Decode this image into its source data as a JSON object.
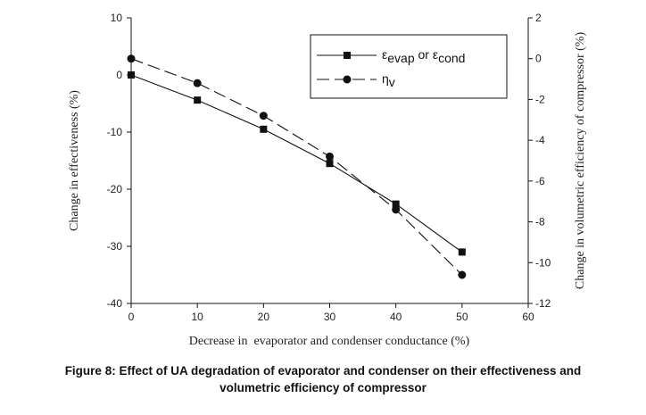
{
  "caption": {
    "line1": "Figure 8: Effect of UA degradation of evaporator and condenser on their effectiveness and",
    "line2": "volumetric efficiency of compressor"
  },
  "chart_data": {
    "type": "line",
    "xlabel": "Decrease in  evaporator and condenser conductance (%)",
    "ylabel_left": "Change in effectiveness (%)",
    "ylabel_right": "Change in volumetric efficiency of compressor (%)",
    "xlim": [
      0,
      60
    ],
    "ylim_left": [
      -40,
      10
    ],
    "ylim_right": [
      -12,
      2
    ],
    "x_ticks": [
      0,
      10,
      20,
      30,
      40,
      50,
      60
    ],
    "y_left_ticks": [
      10,
      0,
      -10,
      -20,
      -30,
      -40
    ],
    "y_right_ticks": [
      2,
      0,
      -2,
      -4,
      -6,
      -8,
      -10,
      -12
    ],
    "grid": false,
    "legend_position": "top-right",
    "series": [
      {
        "name": "εevap or εcond",
        "legend_parts": {
          "sym1": "ε",
          "sub1": "evap",
          "mid": " or ",
          "sym2": "ε",
          "sub2": "cond"
        },
        "axis": "left",
        "marker": "square",
        "line_style": "solid",
        "x": [
          0,
          10,
          20,
          30,
          40,
          50
        ],
        "y": [
          0,
          -4.4,
          -9.5,
          -15.5,
          -22.6,
          -31
        ]
      },
      {
        "name": "ηv",
        "legend_parts": {
          "sym1": "η",
          "sub1": "v"
        },
        "axis": "right",
        "marker": "circle",
        "line_style": "dashed",
        "x": [
          0,
          10,
          20,
          30,
          40,
          50
        ],
        "y": [
          0,
          -1.2,
          -2.8,
          -4.8,
          -7.4,
          -10.6
        ]
      }
    ]
  }
}
